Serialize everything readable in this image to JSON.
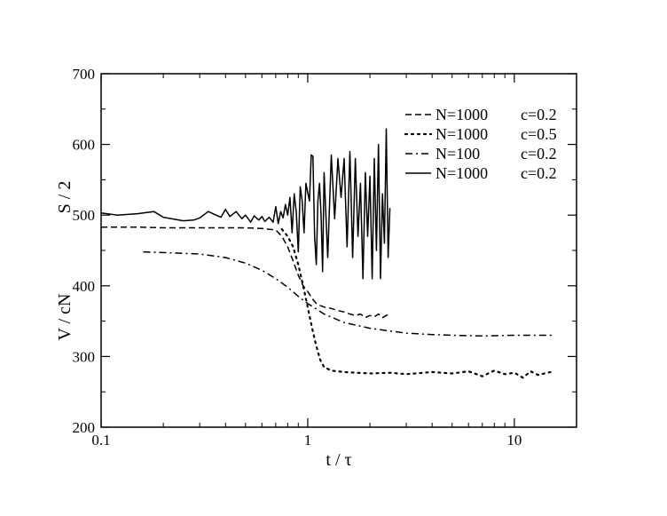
{
  "chart_data": {
    "type": "line",
    "title": "",
    "xlabel": "t / τ",
    "ylabel_lower": "V / cN",
    "ylabel_upper": "S / 2",
    "x_scale": "log",
    "xlim": [
      0.1,
      20
    ],
    "ylim": [
      200,
      700
    ],
    "x_ticks": [
      0.1,
      1,
      10
    ],
    "x_tick_labels": [
      "0.1",
      "1",
      "10"
    ],
    "y_ticks": [
      200,
      300,
      400,
      500,
      600,
      700
    ],
    "y_tick_labels": [
      "200",
      "300",
      "400",
      "500",
      "600",
      "700"
    ],
    "grid": false,
    "legend_position": "top-right",
    "series": [
      {
        "name_n": "N=1000",
        "name_c": "c=0.2",
        "style": "dashed",
        "x": [
          0.1,
          0.15,
          0.2,
          0.3,
          0.4,
          0.5,
          0.6,
          0.7,
          0.75,
          0.8,
          0.85,
          0.9,
          0.95,
          1.0,
          1.05,
          1.1,
          1.15,
          1.2,
          1.3,
          1.4,
          1.5,
          1.6,
          1.7,
          1.8,
          1.9,
          2.0,
          2.1,
          2.2,
          2.3,
          2.4,
          2.5
        ],
        "y": [
          483,
          483,
          482,
          482,
          482,
          482,
          481,
          479,
          470,
          455,
          435,
          415,
          400,
          392,
          382,
          375,
          372,
          370,
          368,
          365,
          363,
          360,
          358,
          360,
          355,
          358,
          356,
          360,
          355,
          358,
          360
        ]
      },
      {
        "name_n": "N=1000",
        "name_c": "c=0.5",
        "style": "dotted",
        "x": [
          0.75,
          0.8,
          0.85,
          0.9,
          0.95,
          1.0,
          1.05,
          1.1,
          1.15,
          1.2,
          1.3,
          1.5,
          2.0,
          2.5,
          3.0,
          4.0,
          5.0,
          6.0,
          7.0,
          8.0,
          9.0,
          10.0,
          11.0,
          12.0,
          13.0,
          14.0,
          15.0
        ],
        "y": [
          480,
          470,
          455,
          430,
          400,
          370,
          340,
          315,
          295,
          285,
          280,
          278,
          276,
          277,
          275,
          278,
          276,
          279,
          272,
          280,
          275,
          277,
          270,
          279,
          274,
          276,
          278
        ]
      },
      {
        "name_n": "N=100",
        "name_c": "c=0.2",
        "style": "dashdot",
        "x": [
          0.16,
          0.2,
          0.3,
          0.4,
          0.5,
          0.6,
          0.7,
          0.8,
          0.9,
          1.0,
          1.2,
          1.5,
          2.0,
          2.5,
          3.0,
          4.0,
          5.0,
          7.0,
          10.0,
          13.0,
          15.5
        ],
        "y": [
          448,
          447,
          445,
          440,
          432,
          422,
          410,
          398,
          385,
          375,
          360,
          348,
          340,
          336,
          333,
          331,
          330,
          329,
          330,
          330,
          330
        ]
      },
      {
        "name_n": "N=1000",
        "name_c": "c=0.2",
        "style": "solid",
        "x": [
          0.1,
          0.12,
          0.15,
          0.18,
          0.2,
          0.25,
          0.28,
          0.3,
          0.33,
          0.36,
          0.38,
          0.4,
          0.42,
          0.45,
          0.48,
          0.5,
          0.53,
          0.55,
          0.58,
          0.6,
          0.62,
          0.65,
          0.68,
          0.7,
          0.72,
          0.74,
          0.76,
          0.78,
          0.8,
          0.82,
          0.84,
          0.86,
          0.88,
          0.9,
          0.92,
          0.94,
          0.96,
          0.98,
          1.0,
          1.02,
          1.04,
          1.06,
          1.08,
          1.1,
          1.12,
          1.14,
          1.16,
          1.18,
          1.2,
          1.25,
          1.3,
          1.35,
          1.4,
          1.45,
          1.5,
          1.55,
          1.6,
          1.65,
          1.7,
          1.75,
          1.8,
          1.85,
          1.9,
          1.95,
          2.0,
          2.05,
          2.1,
          2.15,
          2.2,
          2.25,
          2.3,
          2.35,
          2.4,
          2.45,
          2.5
        ],
        "y": [
          503,
          500,
          502,
          505,
          497,
          492,
          493,
          496,
          505,
          500,
          497,
          508,
          498,
          505,
          495,
          500,
          490,
          499,
          493,
          498,
          491,
          497,
          490,
          512,
          488,
          505,
          496,
          515,
          500,
          525,
          475,
          530,
          505,
          448,
          540,
          520,
          475,
          545,
          532,
          520,
          585,
          583,
          470,
          430,
          520,
          545,
          500,
          420,
          560,
          440,
          585,
          495,
          580,
          525,
          580,
          455,
          590,
          440,
          580,
          470,
          545,
          410,
          560,
          470,
          555,
          410,
          580,
          450,
          600,
          410,
          530,
          460,
          622,
          440,
          510
        ]
      }
    ]
  }
}
